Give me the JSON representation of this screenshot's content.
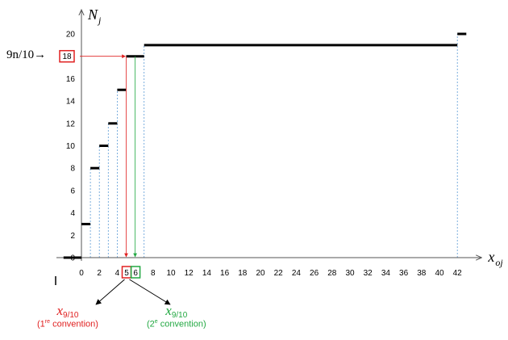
{
  "chart_data": {
    "type": "step",
    "x_axis_label": "x",
    "x_axis_label_sub": "oj",
    "y_axis_label": "N",
    "y_axis_label_sub": "j",
    "x_ticks": [
      0,
      2,
      4,
      6,
      8,
      10,
      12,
      14,
      16,
      18,
      20,
      22,
      24,
      26,
      28,
      30,
      32,
      34,
      36,
      38,
      40,
      42
    ],
    "y_ticks": [
      0,
      2,
      4,
      6,
      8,
      10,
      12,
      14,
      16,
      18,
      20
    ],
    "xlim": [
      -0.5,
      44
    ],
    "ylim": [
      0,
      21
    ],
    "steps": [
      {
        "x_start": -2,
        "x_end": 0,
        "y": 0
      },
      {
        "x_start": 0,
        "x_end": 1,
        "y": 3
      },
      {
        "x_start": 1,
        "x_end": 2,
        "y": 8
      },
      {
        "x_start": 2,
        "x_end": 3,
        "y": 10
      },
      {
        "x_start": 3,
        "x_end": 4,
        "y": 12
      },
      {
        "x_start": 4,
        "x_end": 5,
        "y": 15
      },
      {
        "x_start": 5,
        "x_end": 7,
        "y": 18
      },
      {
        "x_start": 7,
        "x_end": 42,
        "y": 19
      },
      {
        "x_start": 42,
        "x_end": 43,
        "y": 20
      }
    ],
    "threshold_label": "9n/10→",
    "threshold_value": 18,
    "highlighted_x_red": "5",
    "highlighted_x_green": "6",
    "red_arrow_x": 5,
    "green_arrow_x": 6,
    "colors": {
      "red": "#e02020",
      "green": "#22a842",
      "dashed": "#5b9bd5",
      "step": "#000000"
    }
  },
  "annotations": {
    "red": {
      "symbol": "x",
      "subscript": "9/10",
      "caption_prefix": "(1",
      "caption_sup": "re",
      "caption_suffix": " convention)"
    },
    "green": {
      "symbol": "x",
      "subscript": "9/10",
      "caption_prefix": "(2",
      "caption_sup": "e",
      "caption_suffix": " convention)"
    }
  }
}
